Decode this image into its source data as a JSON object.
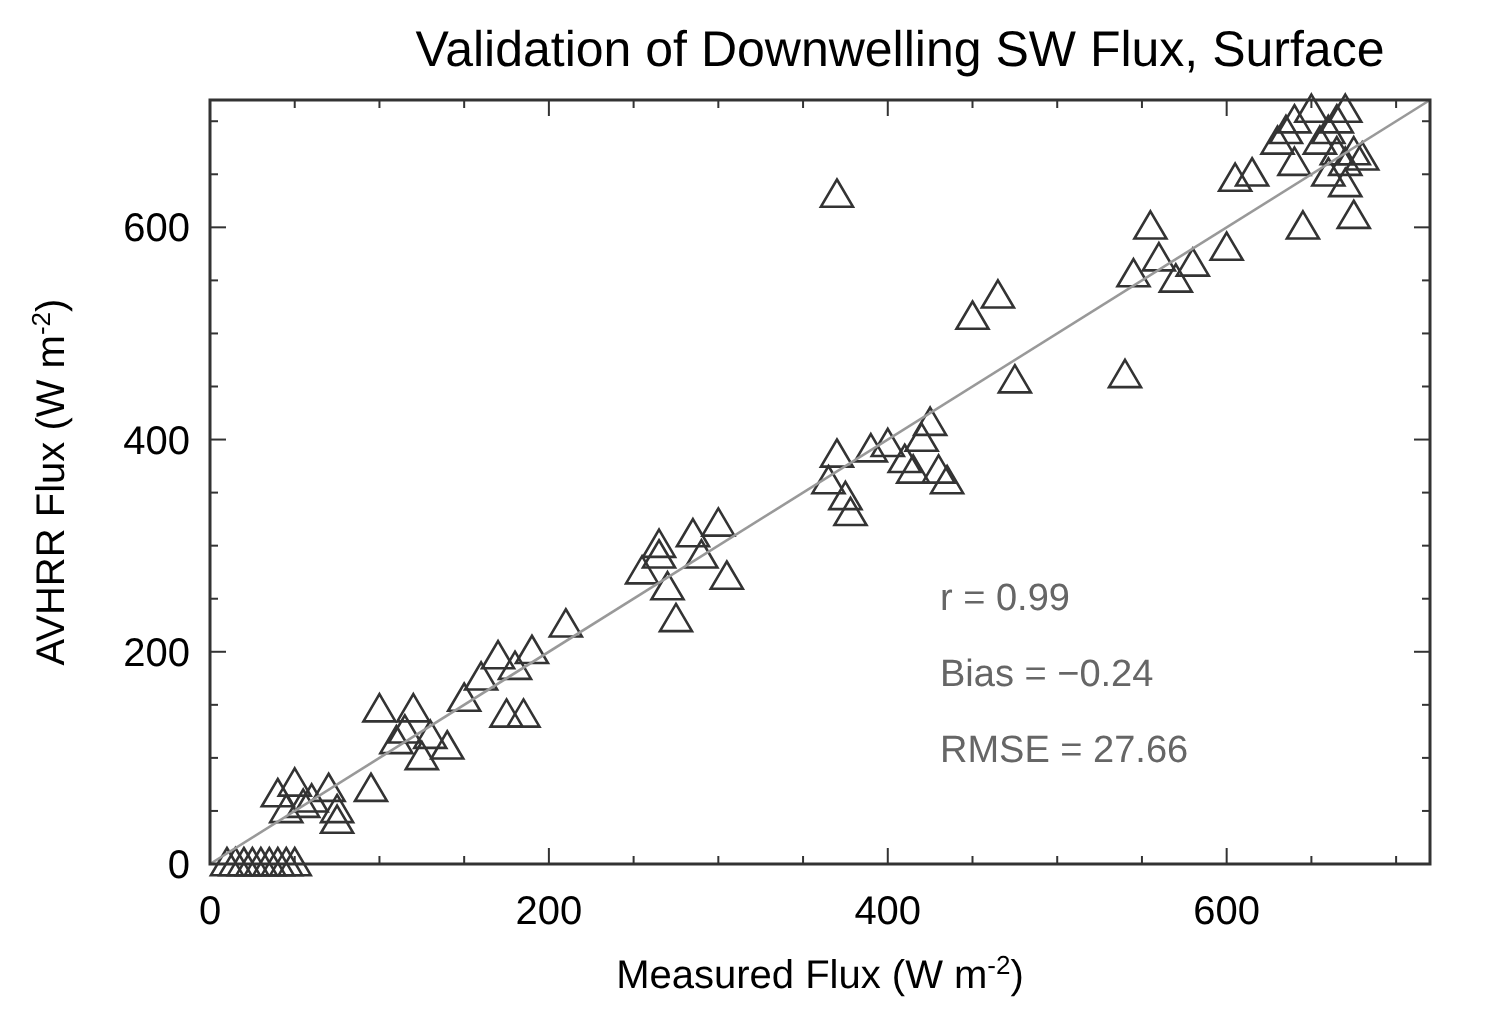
{
  "chart_data": {
    "type": "scatter",
    "title": "Validation of Downwelling SW Flux, Surface",
    "xlabel": "Measured Flux (W m$^{-2}$)",
    "ylabel": "AVHRR Flux (W m$^{-2}$)",
    "xlim": [
      0,
      720
    ],
    "ylim": [
      0,
      720
    ],
    "xticks": [
      0,
      {
        "value": 50,
        "label": null
      },
      {
        "value": 100,
        "label": null
      },
      {
        "value": 150,
        "label": null
      },
      200,
      {
        "value": 250,
        "label": null
      },
      {
        "value": 300,
        "label": null
      },
      {
        "value": 350,
        "label": null
      },
      400,
      {
        "value": 450,
        "label": null
      },
      {
        "value": 500,
        "label": null
      },
      {
        "value": 550,
        "label": null
      },
      600,
      {
        "value": 650,
        "label": null
      },
      {
        "value": 700,
        "label": null
      }
    ],
    "yticks": [
      0,
      {
        "value": 50,
        "label": null
      },
      {
        "value": 100,
        "label": null
      },
      {
        "value": 150,
        "label": null
      },
      200,
      {
        "value": 250,
        "label": null
      },
      {
        "value": 300,
        "label": null
      },
      {
        "value": 350,
        "label": null
      },
      400,
      {
        "value": 450,
        "label": null
      },
      {
        "value": 500,
        "label": null
      },
      {
        "value": 550,
        "label": null
      },
      600,
      {
        "value": 650,
        "label": null
      },
      {
        "value": 700,
        "label": null
      }
    ],
    "grid": false,
    "series": [
      {
        "color": "#333333",
        "marker": "triangle",
        "x": [
          10,
          15,
          20,
          25,
          30,
          35,
          40,
          45,
          50,
          40,
          50,
          55,
          45,
          60,
          70,
          75,
          75,
          95,
          100,
          110,
          115,
          120,
          125,
          130,
          140,
          150,
          160,
          170,
          175,
          180,
          185,
          190,
          210,
          255,
          265,
          265,
          270,
          275,
          285,
          290,
          300,
          305,
          365,
          370,
          370,
          375,
          378,
          390,
          400,
          410,
          415,
          420,
          425,
          430,
          435,
          450,
          465,
          475,
          540,
          545,
          555,
          560,
          570,
          580,
          600,
          605,
          615,
          630,
          635,
          640,
          640,
          645,
          650,
          655,
          660,
          665,
          665,
          670,
          670,
          675,
          675,
          670,
          680,
          660
        ],
        "values": [
          0,
          0,
          0,
          0,
          0,
          0,
          0,
          0,
          0,
          65,
          75,
          55,
          50,
          60,
          70,
          50,
          40,
          70,
          145,
          115,
          125,
          145,
          100,
          120,
          110,
          155,
          175,
          195,
          140,
          185,
          140,
          200,
          225,
          275,
          290,
          300,
          260,
          230,
          310,
          290,
          320,
          270,
          360,
          385,
          630,
          345,
          330,
          390,
          395,
          380,
          370,
          400,
          415,
          370,
          360,
          515,
          535,
          455,
          460,
          555,
          600,
          570,
          550,
          565,
          580,
          645,
          650,
          680,
          690,
          660,
          700,
          600,
          710,
          680,
          650,
          700,
          670,
          660,
          640,
          610,
          670,
          710,
          665,
          690
        ]
      },
      {
        "type": "line",
        "color": "#999999",
        "x": [
          0,
          720
        ],
        "values": [
          0,
          720
        ],
        "marker": "none"
      }
    ],
    "annotations": [
      "r = 0.99",
      "Bias = −0.24",
      "RMSE = 27.66"
    ]
  }
}
